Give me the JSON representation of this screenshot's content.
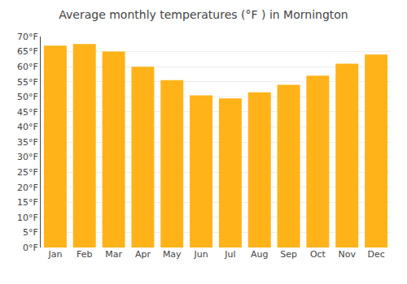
{
  "chart_data": {
    "type": "bar",
    "title": "Average monthly temperatures (°F ) in Mornington",
    "categories": [
      "Jan",
      "Feb",
      "Mar",
      "Apr",
      "May",
      "Jun",
      "Jul",
      "Aug",
      "Sep",
      "Oct",
      "Nov",
      "Dec"
    ],
    "values": [
      67,
      67.5,
      65,
      60,
      55.5,
      50.5,
      49.5,
      51.5,
      54,
      57,
      61,
      64
    ],
    "color": "#FFB319",
    "ylim": [
      0,
      70
    ],
    "yticks": [
      {
        "value": 0,
        "label": "0°F"
      },
      {
        "value": 5,
        "label": "5°F"
      },
      {
        "value": 10,
        "label": "10°F"
      },
      {
        "value": 15,
        "label": "15°F"
      },
      {
        "value": 20,
        "label": "20°F"
      },
      {
        "value": 25,
        "label": "25°F"
      },
      {
        "value": 30,
        "label": "30°F"
      },
      {
        "value": 35,
        "label": "35°F"
      },
      {
        "value": 40,
        "label": "40°F"
      },
      {
        "value": 45,
        "label": "45°F"
      },
      {
        "value": 50,
        "label": "50°F"
      },
      {
        "value": 55,
        "label": "55°F"
      },
      {
        "value": 60,
        "label": "60°F"
      },
      {
        "value": 65,
        "label": "65°F"
      },
      {
        "value": 70,
        "label": "70°F"
      }
    ],
    "grid": true
  }
}
